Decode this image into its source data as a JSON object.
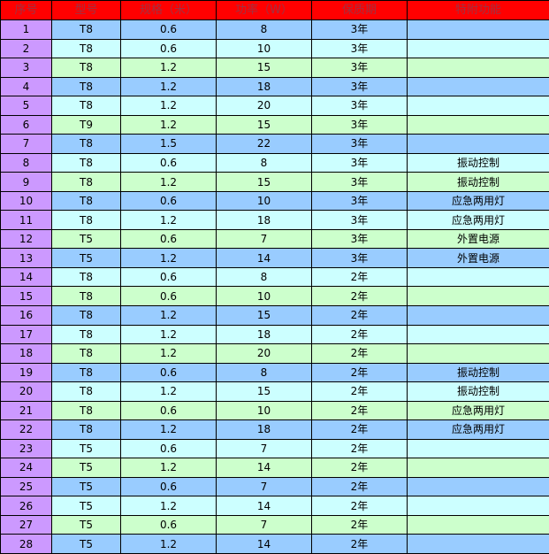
{
  "colors": {
    "header_bg": "#ff0000",
    "header_text": "#a33040",
    "index_bg": "#cc99ff",
    "row_cycle": [
      "#99ccff",
      "#ccffff",
      "#ccffcc"
    ]
  },
  "headers": [
    "序号",
    "型号",
    "规格（米）",
    "功率（W）",
    "保质期",
    "特附功能"
  ],
  "rows": [
    [
      "1",
      "T8",
      "0.6",
      "8",
      "3年",
      ""
    ],
    [
      "2",
      "T8",
      "0.6",
      "10",
      "3年",
      ""
    ],
    [
      "3",
      "T8",
      "1.2",
      "15",
      "3年",
      ""
    ],
    [
      "4",
      "T8",
      "1.2",
      "18",
      "3年",
      ""
    ],
    [
      "5",
      "T8",
      "1.2",
      "20",
      "3年",
      ""
    ],
    [
      "6",
      "T9",
      "1.2",
      "15",
      "3年",
      ""
    ],
    [
      "7",
      "T8",
      "1.5",
      "22",
      "3年",
      ""
    ],
    [
      "8",
      "T8",
      "0.6",
      "8",
      "3年",
      "振动控制"
    ],
    [
      "9",
      "T8",
      "1.2",
      "15",
      "3年",
      "振动控制"
    ],
    [
      "10",
      "T8",
      "0.6",
      "10",
      "3年",
      "应急两用灯"
    ],
    [
      "11",
      "T8",
      "1.2",
      "18",
      "3年",
      "应急两用灯"
    ],
    [
      "12",
      "T5",
      "0.6",
      "7",
      "3年",
      "外置电源"
    ],
    [
      "13",
      "T5",
      "1.2",
      "14",
      "3年",
      "外置电源"
    ],
    [
      "14",
      "T8",
      "0.6",
      "8",
      "2年",
      ""
    ],
    [
      "15",
      "T8",
      "0.6",
      "10",
      "2年",
      ""
    ],
    [
      "16",
      "T8",
      "1.2",
      "15",
      "2年",
      ""
    ],
    [
      "17",
      "T8",
      "1.2",
      "18",
      "2年",
      ""
    ],
    [
      "18",
      "T8",
      "1.2",
      "20",
      "2年",
      ""
    ],
    [
      "19",
      "T8",
      "0.6",
      "8",
      "2年",
      "振动控制"
    ],
    [
      "20",
      "T8",
      "1.2",
      "15",
      "2年",
      "振动控制"
    ],
    [
      "21",
      "T8",
      "0.6",
      "10",
      "2年",
      "应急两用灯"
    ],
    [
      "22",
      "T8",
      "1.2",
      "18",
      "2年",
      "应急两用灯"
    ],
    [
      "23",
      "T5",
      "0.6",
      "7",
      "2年",
      ""
    ],
    [
      "24",
      "T5",
      "1.2",
      "14",
      "2年",
      ""
    ],
    [
      "25",
      "T5",
      "0.6",
      "7",
      "2年",
      ""
    ],
    [
      "26",
      "T5",
      "1.2",
      "14",
      "2年",
      ""
    ],
    [
      "27",
      "T5",
      "0.6",
      "7",
      "2年",
      ""
    ],
    [
      "28",
      "T5",
      "1.2",
      "14",
      "2年",
      ""
    ]
  ]
}
